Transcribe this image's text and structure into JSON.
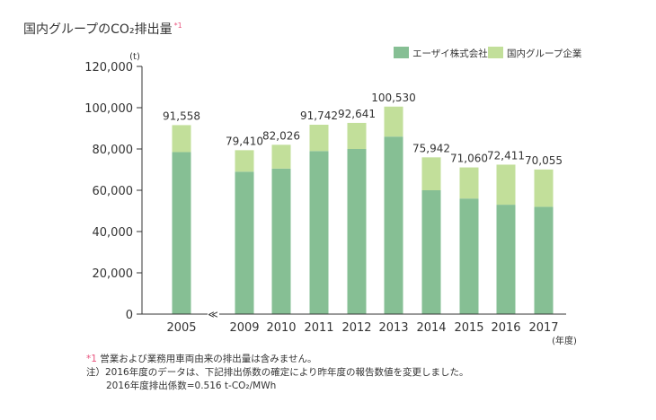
{
  "title": "国内グループのCO₂排出量",
  "title_note_mark": "*1",
  "chart_data": {
    "type": "bar",
    "stacked": true,
    "title": "国内グループのCO₂排出量",
    "unit_label": "(t)",
    "xlabel": "(年度)",
    "categories": [
      "2005",
      "2009",
      "2010",
      "2011",
      "2012",
      "2013",
      "2014",
      "2015",
      "2016",
      "2017"
    ],
    "axis_break_after": "2005",
    "axis_break_symbol": "≪",
    "ylim": [
      0,
      120000
    ],
    "yticks": [
      0,
      20000,
      40000,
      60000,
      80000,
      100000,
      120000
    ],
    "ytick_labels": [
      "0",
      "20,000",
      "40,000",
      "60,000",
      "80,000",
      "100,000",
      "120,000"
    ],
    "series": [
      {
        "name": "エーザイ株式会社",
        "color": "#86bf94",
        "values": [
          78500,
          69000,
          70500,
          79000,
          80000,
          86000,
          60000,
          56000,
          53000,
          52000
        ]
      },
      {
        "name": "国内グループ企業",
        "color": "#c2df9a",
        "values": [
          13058,
          10410,
          11526,
          12742,
          12641,
          14530,
          15942,
          15060,
          19411,
          18055
        ]
      }
    ],
    "totals": [
      91558,
      79410,
      82026,
      91742,
      92641,
      100530,
      75942,
      71060,
      72411,
      70055
    ],
    "total_labels": [
      "91,558",
      "79,410",
      "82,026",
      "91,742",
      "92,641",
      "100,530",
      "75,942",
      "71,060",
      "72,411",
      "70,055"
    ],
    "legend_position": "top-right",
    "grid": false
  },
  "notes": {
    "note1_mark": "*1",
    "note1_text": " 営業および業務用車両由来の排出量は含みません。",
    "note2": "注）2016年度のデータは、下記排出係数の確定により昨年度の報告数値を変更しました。",
    "note3": "2016年度排出係数=0.516 t-CO₂/MWh"
  }
}
